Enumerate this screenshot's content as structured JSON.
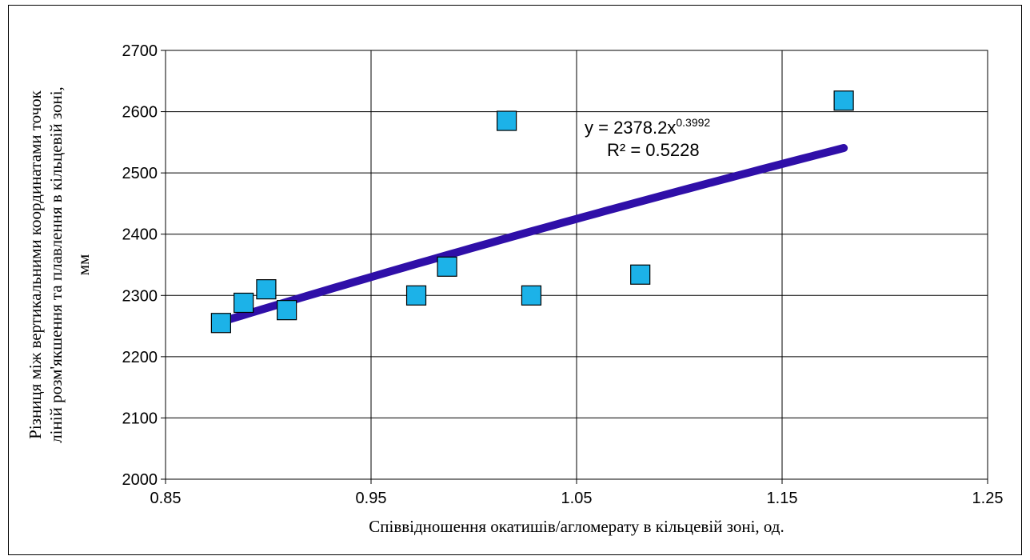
{
  "chart_data": {
    "type": "scatter",
    "title": "",
    "xlabel": "Співвідношення окатишів/агломерату в кільцевій зоні, од.",
    "ylabel_lines": [
      "Різниця між вертикальними координатами точок",
      "ліній розм'якшення та плавлення в кільцевій зоні,",
      "мм"
    ],
    "xlim": [
      0.85,
      1.25
    ],
    "ylim": [
      2000,
      2700
    ],
    "x_ticks": [
      0.85,
      0.95,
      1.05,
      1.15,
      1.25
    ],
    "x_tick_labels": [
      "0.85",
      "0.95",
      "1.05",
      "1.15",
      "1.25"
    ],
    "y_ticks": [
      2000,
      2100,
      2200,
      2300,
      2400,
      2500,
      2600,
      2700
    ],
    "y_tick_labels": [
      "2000",
      "2100",
      "2200",
      "2300",
      "2400",
      "2500",
      "2600",
      "2700"
    ],
    "grid": true,
    "legend": "none",
    "marker_color": "#1CB2E8",
    "trendline_color": "#2F0FA8",
    "points": [
      {
        "x": 0.877,
        "y": 2255
      },
      {
        "x": 0.888,
        "y": 2288
      },
      {
        "x": 0.899,
        "y": 2310
      },
      {
        "x": 0.909,
        "y": 2276
      },
      {
        "x": 0.972,
        "y": 2300
      },
      {
        "x": 0.987,
        "y": 2347
      },
      {
        "x": 1.016,
        "y": 2585
      },
      {
        "x": 1.028,
        "y": 2300
      },
      {
        "x": 1.081,
        "y": 2334
      },
      {
        "x": 1.18,
        "y": 2618
      }
    ],
    "trendline": {
      "type": "power",
      "a": 2378.2,
      "b": 0.3992,
      "x_range": [
        0.877,
        1.18
      ],
      "equation_prefix": "y = 2378.2x",
      "equation_exponent": "0.3992",
      "r_squared_text": "R² = 0.5228"
    }
  }
}
